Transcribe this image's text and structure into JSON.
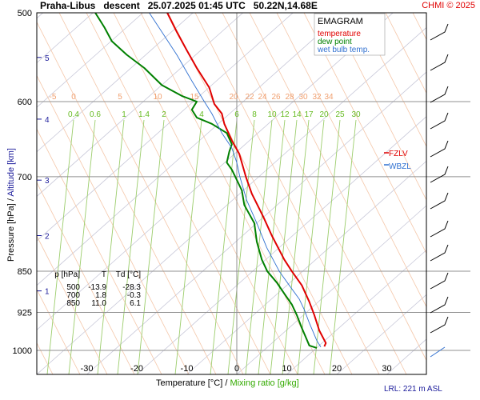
{
  "header": {
    "title": "Praha-Libus   descent   25.07.2025 01:45 UTC   50.22N,14.68E",
    "copyright": "CHMI © 2025"
  },
  "legend": {
    "title": "EMAGRAM",
    "items": [
      {
        "label": "temperature",
        "color": "#e00000"
      },
      {
        "label": "dew point",
        "color": "#008000"
      },
      {
        "label": "wet bulb temp.",
        "color": "#3070d0"
      }
    ]
  },
  "axes": {
    "x_label_a": "Temperature [°C]  /  ",
    "x_label_b": "Mixing ratio [g/kg]",
    "y_label_a": "Pressure [hPa]  /  ",
    "y_label_b": "Altitude [km]",
    "lrl": "LRL: 221 m ASL"
  },
  "markers": {
    "fzlv": "FZLV",
    "wbzl": "WBZL"
  },
  "table": {
    "headers": [
      "p [hPa]",
      "T",
      "Td [°C]"
    ],
    "rows": [
      [
        "500",
        "-13.9",
        "-28.3"
      ],
      [
        "700",
        "1.8",
        "-0.3"
      ],
      [
        "850",
        "11.0",
        "6.1"
      ]
    ]
  },
  "chart_data": {
    "type": "line",
    "title": "EMAGRAM",
    "xlabel": "Temperature [°C] / Mixing ratio [g/kg]",
    "ylabel": "Pressure [hPa] / Altitude [km]",
    "xlim": [
      -40,
      35
    ],
    "ylim": [
      1000,
      500
    ],
    "y_scale": "log",
    "x_ticks": [
      -30,
      -20,
      -10,
      0,
      10,
      20,
      30
    ],
    "y_ticks": [
      500,
      600,
      700,
      850,
      925,
      1000
    ],
    "altitude_ticks_km": [
      {
        "km": "1",
        "p": 885
      },
      {
        "km": "2",
        "p": 790
      },
      {
        "km": "3",
        "p": 705
      },
      {
        "km": "4",
        "p": 622
      },
      {
        "km": "5",
        "p": 548
      }
    ],
    "mixing_ratio_labels": [
      "0.4",
      "0.6",
      "1",
      "1.4",
      "2",
      "4",
      "6",
      "8",
      "10",
      "12",
      "14",
      "17",
      "20",
      "25",
      "30"
    ],
    "dry_adiabat_labels": [
      "-5",
      "0",
      "5",
      "10",
      "15",
      "20",
      "22",
      "24",
      "26",
      "28",
      "30",
      "32",
      "34"
    ],
    "series": [
      {
        "name": "temperature",
        "color": "#e00000",
        "points": [
          [
            17.5,
            992
          ],
          [
            17.8,
            985
          ],
          [
            16.5,
            960
          ],
          [
            15.5,
            930
          ],
          [
            14.5,
            905
          ],
          [
            13.0,
            875
          ],
          [
            11.0,
            850
          ],
          [
            9.5,
            830
          ],
          [
            7.0,
            790
          ],
          [
            5.3,
            760
          ],
          [
            3.0,
            725
          ],
          [
            1.8,
            700
          ],
          [
            1.4,
            690
          ],
          [
            0.5,
            668
          ],
          [
            -1.0,
            650
          ],
          [
            -2.5,
            628
          ],
          [
            -3.0,
            615
          ],
          [
            -4.5,
            603
          ],
          [
            -5.5,
            583
          ],
          [
            -8.0,
            560
          ],
          [
            -10.0,
            540
          ],
          [
            -12.0,
            520
          ],
          [
            -13.9,
            500
          ]
        ]
      },
      {
        "name": "dew point",
        "color": "#008000",
        "points": [
          [
            16.0,
            995
          ],
          [
            14.5,
            990
          ],
          [
            14.0,
            978
          ],
          [
            13.0,
            955
          ],
          [
            12.0,
            930
          ],
          [
            11.0,
            910
          ],
          [
            9.5,
            890
          ],
          [
            8.0,
            870
          ],
          [
            6.1,
            850
          ],
          [
            5.0,
            830
          ],
          [
            4.0,
            800
          ],
          [
            3.5,
            770
          ],
          [
            1.5,
            742
          ],
          [
            1.0,
            720
          ],
          [
            -0.3,
            700
          ],
          [
            -1.0,
            690
          ],
          [
            -2.0,
            680
          ],
          [
            -1.5,
            665
          ],
          [
            -1.0,
            655
          ],
          [
            -2.0,
            640
          ],
          [
            -5.0,
            628
          ],
          [
            -8.0,
            620
          ],
          [
            -9.0,
            610
          ],
          [
            -8.0,
            600
          ],
          [
            -11.0,
            593
          ],
          [
            -15.0,
            580
          ],
          [
            -18.5,
            560
          ],
          [
            -22.0,
            545
          ],
          [
            -25.0,
            530
          ],
          [
            -26.5,
            515
          ],
          [
            -28.3,
            500
          ]
        ]
      },
      {
        "name": "wet bulb temp.",
        "color": "#3070d0",
        "points": [
          [
            16.8,
            993
          ],
          [
            16.0,
            980
          ],
          [
            14.5,
            945
          ],
          [
            13.5,
            920
          ],
          [
            12.5,
            900
          ],
          [
            10.5,
            875
          ],
          [
            8.5,
            850
          ],
          [
            6.0,
            810
          ],
          [
            4.0,
            770
          ],
          [
            2.0,
            735
          ],
          [
            0.6,
            700
          ],
          [
            0.0,
            680
          ],
          [
            -1.0,
            660
          ],
          [
            -3.0,
            640
          ],
          [
            -5.0,
            615
          ],
          [
            -6.5,
            600
          ],
          [
            -9.0,
            575
          ],
          [
            -12.0,
            545
          ],
          [
            -15.0,
            520
          ],
          [
            -17.5,
            500
          ]
        ]
      }
    ],
    "grid": true,
    "legend_position": "top-right"
  }
}
